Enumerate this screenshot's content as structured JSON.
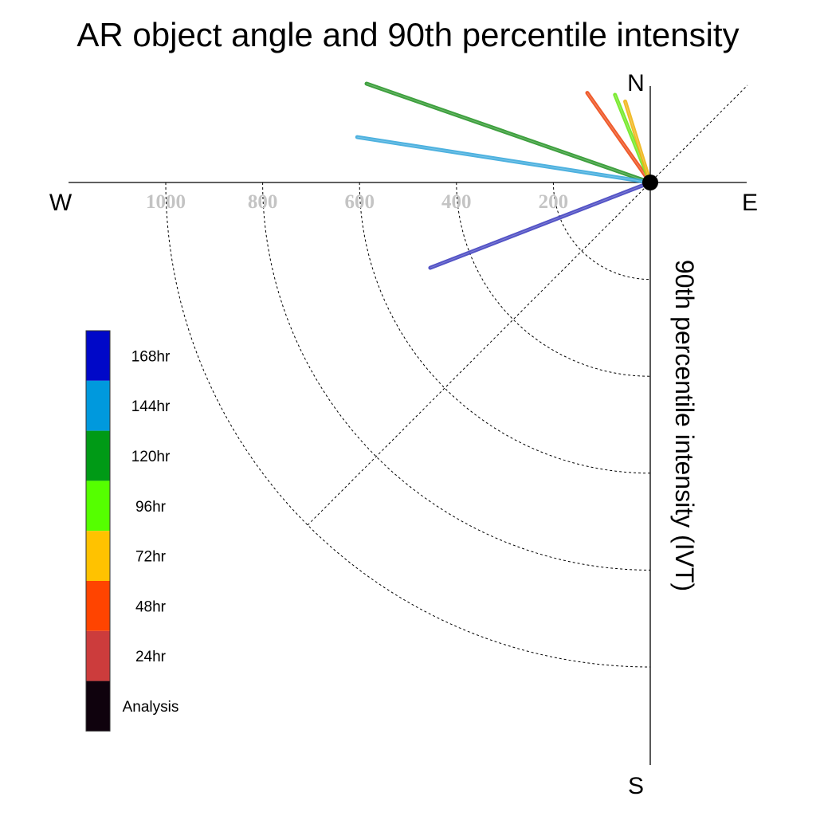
{
  "chart_data": {
    "type": "polar-quadrant",
    "title": "AR object angle and 90th percentile intensity",
    "ylabel": "90th percentile intensity (IVT)",
    "compass": {
      "north": "N",
      "south": "S",
      "east": "E",
      "west": "W"
    },
    "radial_ticks": [
      "1000",
      "800",
      "600",
      "400",
      "200"
    ],
    "radial_values": [
      1000,
      800,
      600,
      400,
      200
    ],
    "rlim": [
      0,
      1000
    ],
    "grid": true,
    "legend_position": "left",
    "legend": [
      {
        "label": "168hr",
        "color": "#0008c8"
      },
      {
        "label": "144hr",
        "color": "#0099dd"
      },
      {
        "label": "120hr",
        "color": "#009a16"
      },
      {
        "label": "96hr",
        "color": "#55ff00"
      },
      {
        "label": "72hr",
        "color": "#ffc200"
      },
      {
        "label": "48hr",
        "color": "#ff4400"
      },
      {
        "label": "24hr",
        "color": "#cc3c3c"
      },
      {
        "label": "Analysis",
        "color": "#0f020d"
      }
    ],
    "series": [
      {
        "name": "120hr",
        "color": "#2a962a",
        "angle_deg": 160.8,
        "intensity": 620
      },
      {
        "name": "144hr",
        "color": "#3aa9dc",
        "angle_deg": 171.2,
        "intensity": 612
      },
      {
        "name": "168hr",
        "color": "#4242c0",
        "angle_deg": 201.2,
        "intensity": 487
      },
      {
        "name": "48hr",
        "color": "#ee4a16",
        "angle_deg": 125.1,
        "intensity": 226
      },
      {
        "name": "96hr",
        "color": "#6ee81e",
        "angle_deg": 111.9,
        "intensity": 195
      },
      {
        "name": "72hr",
        "color": "#f0b414",
        "angle_deg": 107.2,
        "intensity": 175
      },
      {
        "name": "Analysis",
        "color": "#000000",
        "angle_deg": 0,
        "intensity": 0
      }
    ]
  }
}
